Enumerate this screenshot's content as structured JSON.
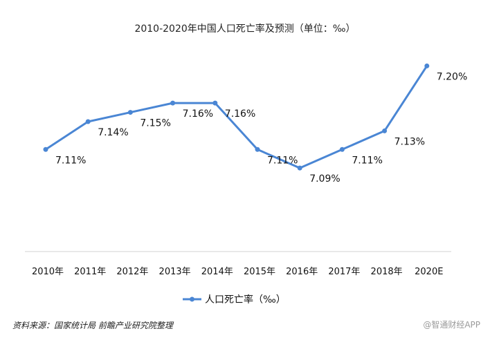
{
  "chart_data": {
    "type": "line",
    "title": "2010-2020年中国人口死亡率及预测（单位：‰）",
    "categories": [
      "2010年",
      "2011年",
      "2012年",
      "2013年",
      "2014年",
      "2015年",
      "2016年",
      "2017年",
      "2018年",
      "2020E"
    ],
    "series": [
      {
        "name": "人口死亡率（‰）",
        "values": [
          7.11,
          7.14,
          7.15,
          7.16,
          7.16,
          7.11,
          7.09,
          7.11,
          7.13,
          7.2
        ],
        "labels": [
          "7.11%",
          "7.14%",
          "7.15%",
          "7.16%",
          "7.16%",
          "7.11%",
          "7.09%",
          "7.11%",
          "7.13%",
          "7.20%"
        ]
      }
    ],
    "ylim": [
      7.0,
      7.21
    ],
    "grid": false,
    "legend": "bottom-center",
    "colors": {
      "line": "#4a86d4",
      "axis": "#d0d0d0"
    }
  },
  "source": "资料来源：国家统计局 前瞻产业研究院整理",
  "watermark": "@智通财经APP"
}
